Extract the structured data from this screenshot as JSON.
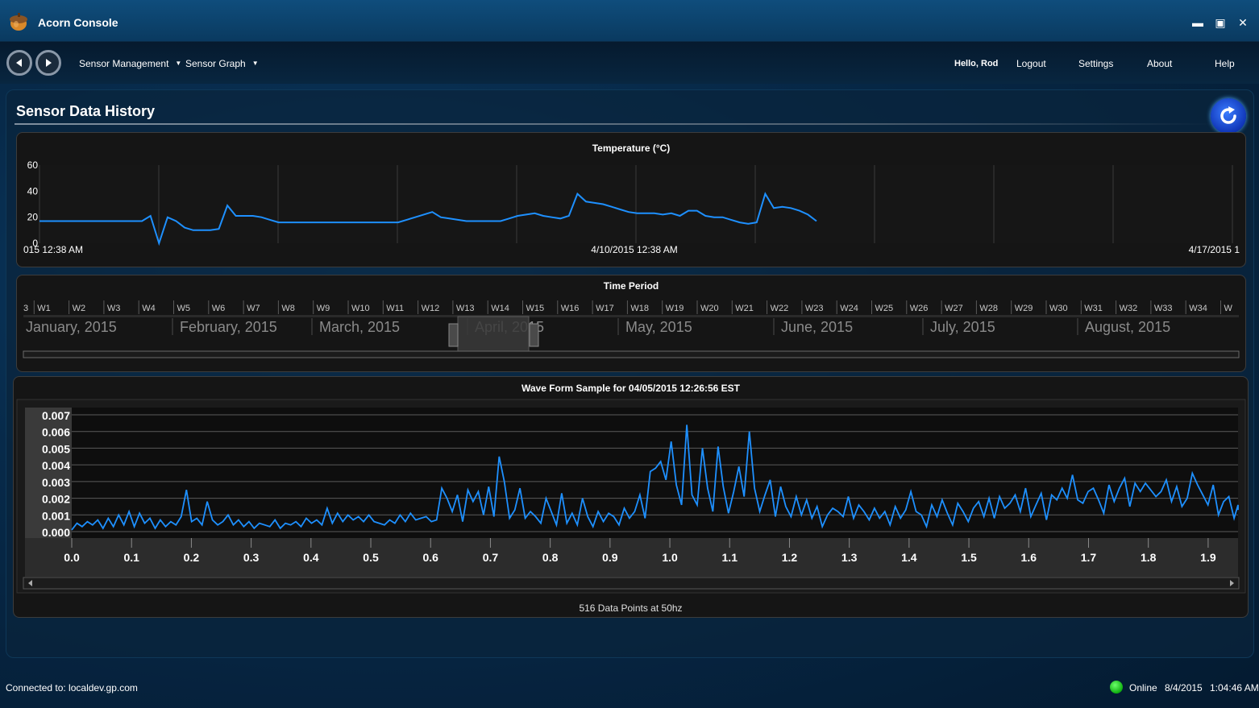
{
  "window": {
    "title": "Acorn Console",
    "minimize_glyph": "▬",
    "maximize_glyph": "▣",
    "close_glyph": "✕"
  },
  "nav": {
    "menus": [
      "Sensor Management",
      "Sensor Graph"
    ],
    "greeting": "Hello, Rod",
    "links": [
      "Logout",
      "Settings",
      "About",
      "Help"
    ]
  },
  "page": {
    "title": "Sensor Data History"
  },
  "temperature_chart": {
    "title": "Temperature (°C)",
    "y_ticks": [
      "60",
      "40",
      "20",
      "0"
    ],
    "x_labels": [
      "015 12:38 AM",
      "4/10/2015 12:38 AM",
      "4/17/2015 1"
    ],
    "line_color": "#1e90ff"
  },
  "time_period": {
    "title": "Time Period",
    "weeks": [
      "3",
      "W1",
      "W2",
      "W3",
      "W4",
      "W5",
      "W6",
      "W7",
      "W8",
      "W9",
      "W10",
      "W11",
      "W12",
      "W13",
      "W14",
      "W15",
      "W16",
      "W17",
      "W18",
      "W19",
      "W20",
      "W21",
      "W22",
      "W23",
      "W24",
      "W25",
      "W26",
      "W27",
      "W28",
      "W29",
      "W30",
      "W31",
      "W32",
      "W33",
      "W34",
      "W"
    ],
    "months": [
      "January, 2015",
      "February, 2015",
      "March, 2015",
      "April, 2015",
      "May, 2015",
      "June, 2015",
      "July, 2015",
      "August, 2015"
    ]
  },
  "wave_form": {
    "title": "Wave Form Sample for 04/05/2015 12:26:56 EST",
    "y_ticks": [
      "0.007",
      "0.006",
      "0.005",
      "0.004",
      "0.003",
      "0.002",
      "0.001",
      "0.000"
    ],
    "x_ticks": [
      "0.0",
      "0.1",
      "0.2",
      "0.3",
      "0.4",
      "0.5",
      "0.6",
      "0.7",
      "0.8",
      "0.9",
      "1.0",
      "1.1",
      "1.2",
      "1.3",
      "1.4",
      "1.5",
      "1.6",
      "1.7",
      "1.8",
      "1.9"
    ],
    "footer": "516 Data Points at 50hz",
    "line_color": "#1e90ff"
  },
  "chart_data": [
    {
      "type": "line",
      "title": "Temperature (°C)",
      "ylim": [
        0,
        60
      ],
      "series": [
        {
          "values": [
            17,
            17,
            17,
            17,
            17,
            17,
            17,
            17,
            17,
            17,
            17,
            17,
            17,
            21,
            0,
            20,
            17,
            12,
            10,
            10,
            10,
            11,
            29,
            21,
            21,
            21,
            20,
            18,
            16,
            16,
            16,
            16,
            16,
            16,
            16,
            16,
            16,
            16,
            16,
            16,
            16,
            16,
            16,
            18,
            20,
            22,
            24,
            20,
            19,
            18,
            17,
            17,
            17,
            17,
            17,
            19,
            21,
            22,
            23,
            21,
            20,
            19,
            21,
            38,
            32,
            31,
            30,
            28,
            26,
            24,
            23,
            23,
            23,
            22,
            23,
            21,
            25,
            25,
            21,
            20,
            20,
            18,
            16,
            15,
            16,
            38,
            27,
            28,
            27,
            25,
            22,
            17
          ]
        }
      ]
    },
    {
      "type": "line",
      "title": "Wave Form Sample for 04/05/2015 12:26:56 EST",
      "xlim": [
        0,
        1.95
      ],
      "ylim": [
        0,
        0.007
      ],
      "series": [
        {
          "values": [
            0.0001,
            0.0005,
            0.0003,
            0.0006,
            0.0004,
            0.0007,
            0.0002,
            0.0008,
            0.0003,
            0.001,
            0.0004,
            0.0012,
            0.0003,
            0.0011,
            0.0005,
            0.0008,
            0.0002,
            0.0007,
            0.0003,
            0.0006,
            0.0004,
            0.0009,
            0.0025,
            0.0006,
            0.0008,
            0.0004,
            0.0018,
            0.0007,
            0.0004,
            0.0006,
            0.001,
            0.0004,
            0.0007,
            0.0003,
            0.0006,
            0.0002,
            0.0005,
            0.0004,
            0.0003,
            0.0007,
            0.0002,
            0.0005,
            0.0004,
            0.0006,
            0.0003,
            0.0008,
            0.0005,
            0.0007,
            0.0004,
            0.0014,
            0.0005,
            0.0011,
            0.0006,
            0.001,
            0.0007,
            0.0009,
            0.0006,
            0.001,
            0.0006,
            0.0005,
            0.0004,
            0.0007,
            0.0005,
            0.001,
            0.0006,
            0.0011,
            0.0007,
            0.0008,
            0.0009,
            0.0006,
            0.0007,
            0.0026,
            0.002,
            0.0012,
            0.0022,
            0.0006,
            0.0025,
            0.0018,
            0.0024,
            0.001,
            0.0027,
            0.0009,
            0.0045,
            0.003,
            0.0008,
            0.0013,
            0.0026,
            0.0008,
            0.0012,
            0.0009,
            0.0005,
            0.002,
            0.0012,
            0.0004,
            0.0023,
            0.0005,
            0.0011,
            0.0004,
            0.002,
            0.0009,
            0.0003,
            0.0012,
            0.0006,
            0.0011,
            0.0009,
            0.0004,
            0.0014,
            0.0008,
            0.0012,
            0.0022,
            0.0008,
            0.0036,
            0.0038,
            0.0042,
            0.0031,
            0.0054,
            0.0028,
            0.0016,
            0.0064,
            0.0022,
            0.0016,
            0.005,
            0.0026,
            0.0012,
            0.0051,
            0.0027,
            0.0011,
            0.0024,
            0.0039,
            0.0021,
            0.006,
            0.0026,
            0.0012,
            0.0022,
            0.0031,
            0.0009,
            0.0027,
            0.0015,
            0.0009,
            0.0021,
            0.001,
            0.0019,
            0.0008,
            0.0015,
            0.0003,
            0.001,
            0.0014,
            0.0012,
            0.0009,
            0.0021,
            0.0008,
            0.0016,
            0.0012,
            0.0007,
            0.0014,
            0.0008,
            0.0012,
            0.0004,
            0.0015,
            0.0008,
            0.0013,
            0.0024,
            0.0012,
            0.001,
            0.0003,
            0.0016,
            0.0009,
            0.0019,
            0.0011,
            0.0004,
            0.0017,
            0.0012,
            0.0006,
            0.0014,
            0.0018,
            0.0009,
            0.002,
            0.0008,
            0.0021,
            0.0014,
            0.0017,
            0.0022,
            0.0012,
            0.0026,
            0.0009,
            0.0016,
            0.0023,
            0.0007,
            0.0022,
            0.0019,
            0.0026,
            0.002,
            0.0034,
            0.0019,
            0.0017,
            0.0024,
            0.0026,
            0.0019,
            0.0011,
            0.0028,
            0.0018,
            0.0026,
            0.0032,
            0.0015,
            0.0029,
            0.0024,
            0.0029,
            0.0025,
            0.0021,
            0.0024,
            0.0031,
            0.0018,
            0.0027,
            0.0015,
            0.002,
            0.0035,
            0.0028,
            0.0022,
            0.0016,
            0.0028,
            0.001,
            0.0018,
            0.0021,
            0.0008,
            0.0016,
            0.0013
          ]
        }
      ]
    }
  ]
}
